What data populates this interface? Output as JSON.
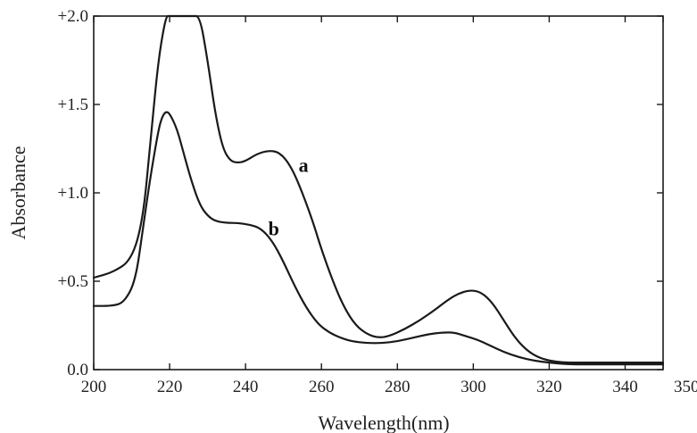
{
  "chart_data": {
    "type": "line",
    "xlabel": "Wavelength(nm)",
    "ylabel": "Absorbance",
    "xlim": [
      200,
      350
    ],
    "ylim": [
      0,
      2.0
    ],
    "x_ticks": [
      200,
      220,
      240,
      260,
      280,
      300,
      320,
      340,
      350
    ],
    "x_tick_labels": [
      "200",
      "220",
      "240",
      "260",
      "280",
      "300",
      "320",
      "340",
      "350"
    ],
    "y_ticks": [
      0,
      0.5,
      1.0,
      1.5,
      2.0
    ],
    "y_tick_labels": [
      "0.0",
      "+0.5",
      "+1.0",
      "+1.5",
      "+2.0"
    ],
    "grid": false,
    "series": [
      {
        "name": "a",
        "x": [
          200,
          205,
          210,
          213,
          215,
          217,
          219,
          220,
          222,
          224,
          226,
          228,
          230,
          232,
          234,
          236,
          238,
          240,
          243,
          246,
          249,
          252,
          255,
          258,
          260,
          263,
          266,
          269,
          272,
          275,
          278,
          282,
          286,
          290,
          293,
          296,
          299,
          302,
          305,
          308,
          311,
          314,
          317,
          320,
          324,
          328,
          332,
          336,
          340,
          345,
          350
        ],
        "y": [
          0.52,
          0.55,
          0.62,
          0.85,
          1.3,
          1.75,
          2.0,
          2.0,
          2.0,
          2.0,
          2.0,
          2.0,
          1.75,
          1.45,
          1.25,
          1.18,
          1.17,
          1.18,
          1.22,
          1.24,
          1.23,
          1.15,
          1.0,
          0.82,
          0.68,
          0.5,
          0.35,
          0.25,
          0.2,
          0.18,
          0.19,
          0.23,
          0.28,
          0.34,
          0.39,
          0.43,
          0.45,
          0.44,
          0.38,
          0.28,
          0.18,
          0.11,
          0.07,
          0.05,
          0.04,
          0.04,
          0.04,
          0.04,
          0.04,
          0.04,
          0.04
        ]
      },
      {
        "name": "b",
        "x": [
          200,
          205,
          208,
          211,
          213,
          215,
          217,
          218,
          219,
          220,
          222,
          224,
          226,
          228,
          230,
          232,
          235,
          238,
          241,
          244,
          247,
          250,
          253,
          256,
          259,
          262,
          265,
          268,
          272,
          276,
          280,
          284,
          288,
          292,
          295,
          298,
          301,
          304,
          308,
          312,
          316,
          320,
          325,
          330,
          335,
          340,
          345,
          350
        ],
        "y": [
          0.36,
          0.36,
          0.38,
          0.5,
          0.8,
          1.1,
          1.35,
          1.43,
          1.46,
          1.45,
          1.36,
          1.2,
          1.05,
          0.93,
          0.87,
          0.84,
          0.83,
          0.83,
          0.82,
          0.8,
          0.73,
          0.61,
          0.47,
          0.35,
          0.26,
          0.21,
          0.18,
          0.16,
          0.15,
          0.15,
          0.16,
          0.18,
          0.2,
          0.21,
          0.21,
          0.19,
          0.17,
          0.14,
          0.1,
          0.07,
          0.05,
          0.04,
          0.03,
          0.03,
          0.03,
          0.03,
          0.03,
          0.03
        ]
      }
    ],
    "annotations": [
      {
        "text": "a",
        "x": 254,
        "y": 1.16
      },
      {
        "text": "b",
        "x": 246,
        "y": 0.8
      }
    ]
  }
}
